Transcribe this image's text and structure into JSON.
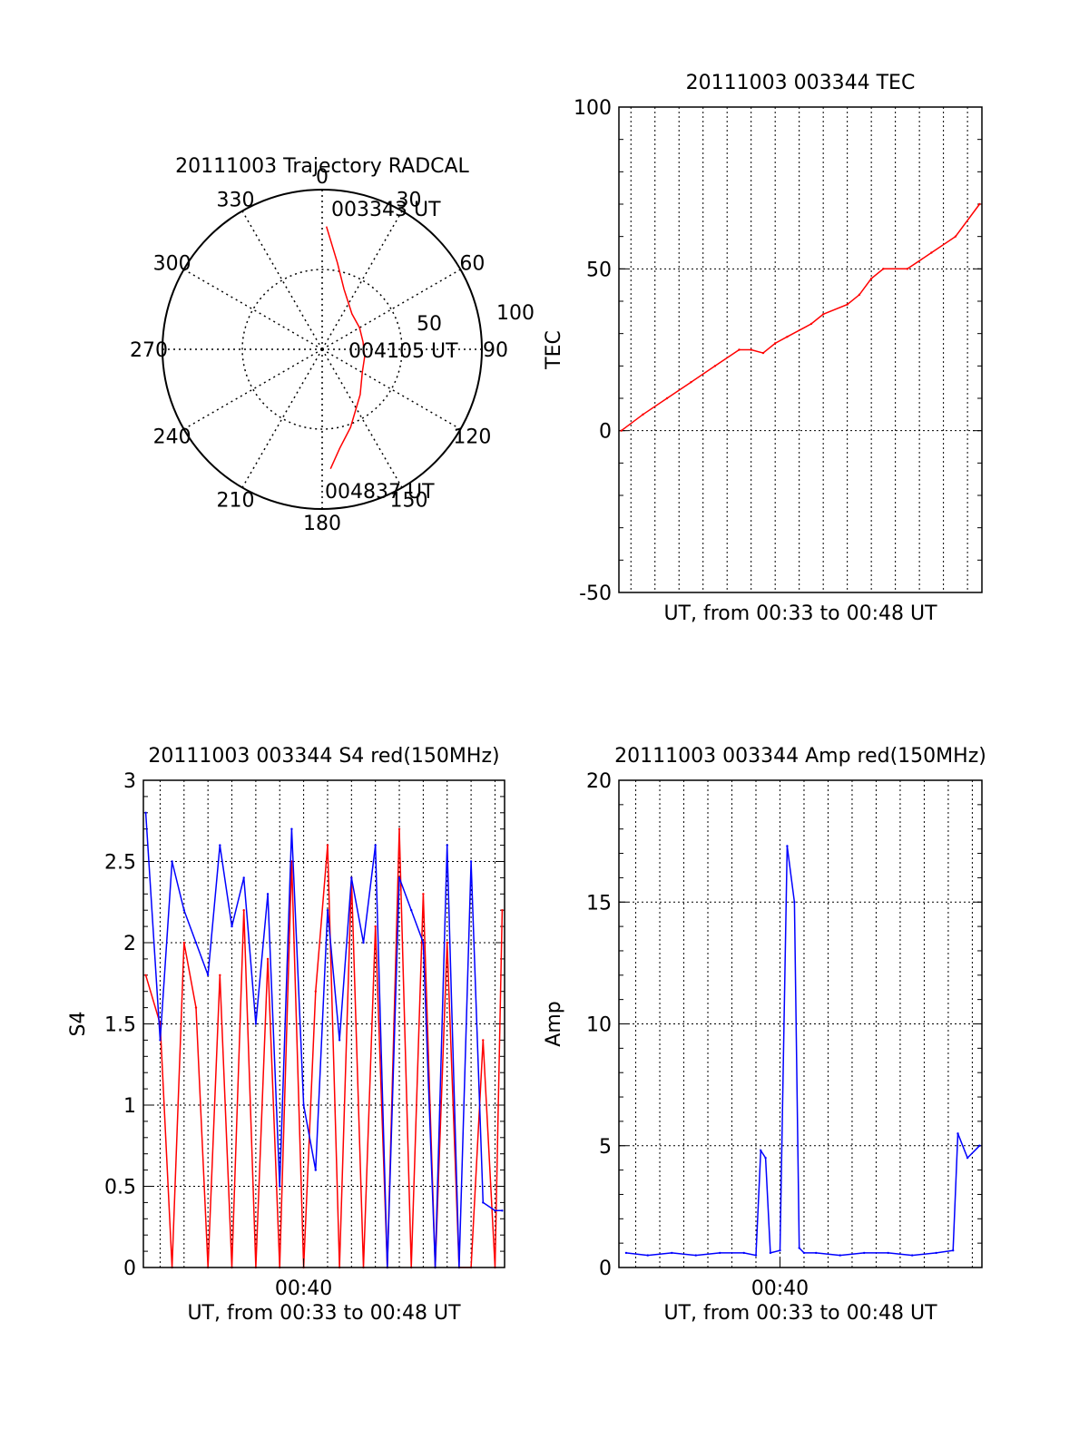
{
  "chart_data": [
    {
      "type": "polar",
      "title": "20111003 Trajectory RADCAL",
      "azimuth_labels": [
        "0",
        "30",
        "60",
        "90",
        "120",
        "150",
        "180",
        "210",
        "240",
        "270",
        "300",
        "330"
      ],
      "radius_labels": [
        "50",
        "100"
      ],
      "rlim": [
        0,
        100
      ],
      "grid": true,
      "start_label": "003343 UT",
      "mid_label": "004105 UT",
      "end_label": "004837 UT",
      "series": [
        {
          "color": "#ff0000",
          "points": [
            [
              2,
              77
            ],
            [
              10,
              55
            ],
            [
              20,
              40
            ],
            [
              40,
              29
            ],
            [
              60,
              27
            ],
            [
              80,
              26
            ],
            [
              90,
              26
            ],
            [
              100,
              27
            ],
            [
              120,
              29
            ],
            [
              140,
              37
            ],
            [
              160,
              52
            ],
            [
              170,
              63
            ],
            [
              176,
              75
            ]
          ]
        }
      ]
    },
    {
      "type": "line",
      "title": "20111003 003344 TEC",
      "xlabel": "UT, from 00:33 to 00:48 UT",
      "ylabel": "TEC",
      "ylim": [
        -50,
        100
      ],
      "yticks": [
        "-50",
        "0",
        "50",
        "100"
      ],
      "xlim": [
        33.5,
        48.6
      ],
      "grid": true,
      "series": [
        {
          "color": "#ff0000",
          "x": [
            33.6,
            34.5,
            35.5,
            36.5,
            37.5,
            38.5,
            39.0,
            39.5,
            40.0,
            40.5,
            41.5,
            42.0,
            43.0,
            43.5,
            44.0,
            44.5,
            45.5,
            46.5,
            47.5,
            48.5
          ],
          "y": [
            0,
            5,
            10,
            15,
            20,
            25,
            25,
            24,
            27,
            29,
            33,
            36,
            39,
            42,
            47,
            50,
            50,
            55,
            60,
            70
          ]
        }
      ]
    },
    {
      "type": "line",
      "title": "20111003 003344 S4 red(150MHz)",
      "xlabel": "UT, from 00:33 to 00:48 UT",
      "ylabel": "S4",
      "ylim": [
        0,
        3
      ],
      "yticks": [
        "0",
        "0.5",
        "1",
        "1.5",
        "2",
        "2.5",
        "3"
      ],
      "xlim": [
        33.3,
        48.4
      ],
      "xtick_labels": [
        "00:40"
      ],
      "grid": true,
      "series": [
        {
          "color": "#ff0000",
          "x": [
            33.4,
            34.0,
            34.5,
            35.0,
            35.5,
            36.0,
            36.5,
            37.0,
            37.5,
            38.0,
            38.5,
            39.0,
            39.5,
            40.0,
            40.5,
            41.0,
            41.5,
            42.0,
            42.5,
            43.0,
            43.5,
            44.0,
            44.5,
            45.0,
            45.5,
            46.0,
            46.5,
            47.0,
            47.5,
            48.0,
            48.3
          ],
          "y": [
            1.8,
            1.5,
            0.0,
            2.0,
            1.6,
            0.0,
            1.8,
            0.0,
            2.2,
            0.0,
            1.9,
            0.0,
            2.5,
            0.0,
            1.7,
            2.6,
            0.0,
            2.4,
            0.0,
            2.1,
            0.0,
            2.7,
            0.0,
            2.3,
            0.0,
            2.0,
            0.0,
            0.0,
            1.4,
            0.0,
            2.2
          ]
        },
        {
          "color": "#0000ff",
          "x": [
            33.4,
            34.0,
            34.5,
            35.0,
            35.5,
            36.0,
            36.5,
            37.0,
            37.5,
            38.0,
            38.5,
            39.0,
            39.5,
            40.0,
            40.5,
            41.0,
            41.5,
            42.0,
            42.5,
            43.0,
            43.5,
            44.0,
            44.5,
            45.0,
            45.5,
            46.0,
            46.5,
            47.0,
            47.5,
            48.0,
            48.3
          ],
          "y": [
            2.8,
            1.4,
            2.5,
            2.2,
            2.0,
            1.8,
            2.6,
            2.1,
            2.4,
            1.5,
            2.3,
            0.5,
            2.7,
            1.0,
            0.6,
            2.2,
            1.4,
            2.4,
            2.0,
            2.6,
            0.0,
            2.4,
            2.2,
            2.0,
            0.0,
            2.6,
            0.0,
            2.5,
            0.4,
            0.35,
            0.35
          ]
        }
      ]
    },
    {
      "type": "line",
      "title": "20111003 003344 Amp red(150MHz)",
      "xlabel": "UT, from 00:33 to 00:48 UT",
      "ylabel": "Amp",
      "ylim": [
        0,
        20
      ],
      "yticks": [
        "0",
        "5",
        "10",
        "15",
        "20"
      ],
      "xlim": [
        33.3,
        48.4
      ],
      "xtick_labels": [
        "00:40"
      ],
      "grid": true,
      "series": [
        {
          "color": "#0000ff",
          "x": [
            33.6,
            34.5,
            35.5,
            36.5,
            37.5,
            38.5,
            39.0,
            39.2,
            39.4,
            39.6,
            40.0,
            40.3,
            40.6,
            40.8,
            41.0,
            41.5,
            42.5,
            43.5,
            44.5,
            45.5,
            46.5,
            47.2,
            47.4,
            47.8,
            48.3
          ],
          "y": [
            0.6,
            0.5,
            0.6,
            0.5,
            0.6,
            0.6,
            0.5,
            4.8,
            4.5,
            0.6,
            0.7,
            17.3,
            15.0,
            0.8,
            0.6,
            0.6,
            0.5,
            0.6,
            0.6,
            0.5,
            0.6,
            0.7,
            5.5,
            4.5,
            5.0
          ]
        }
      ]
    }
  ]
}
